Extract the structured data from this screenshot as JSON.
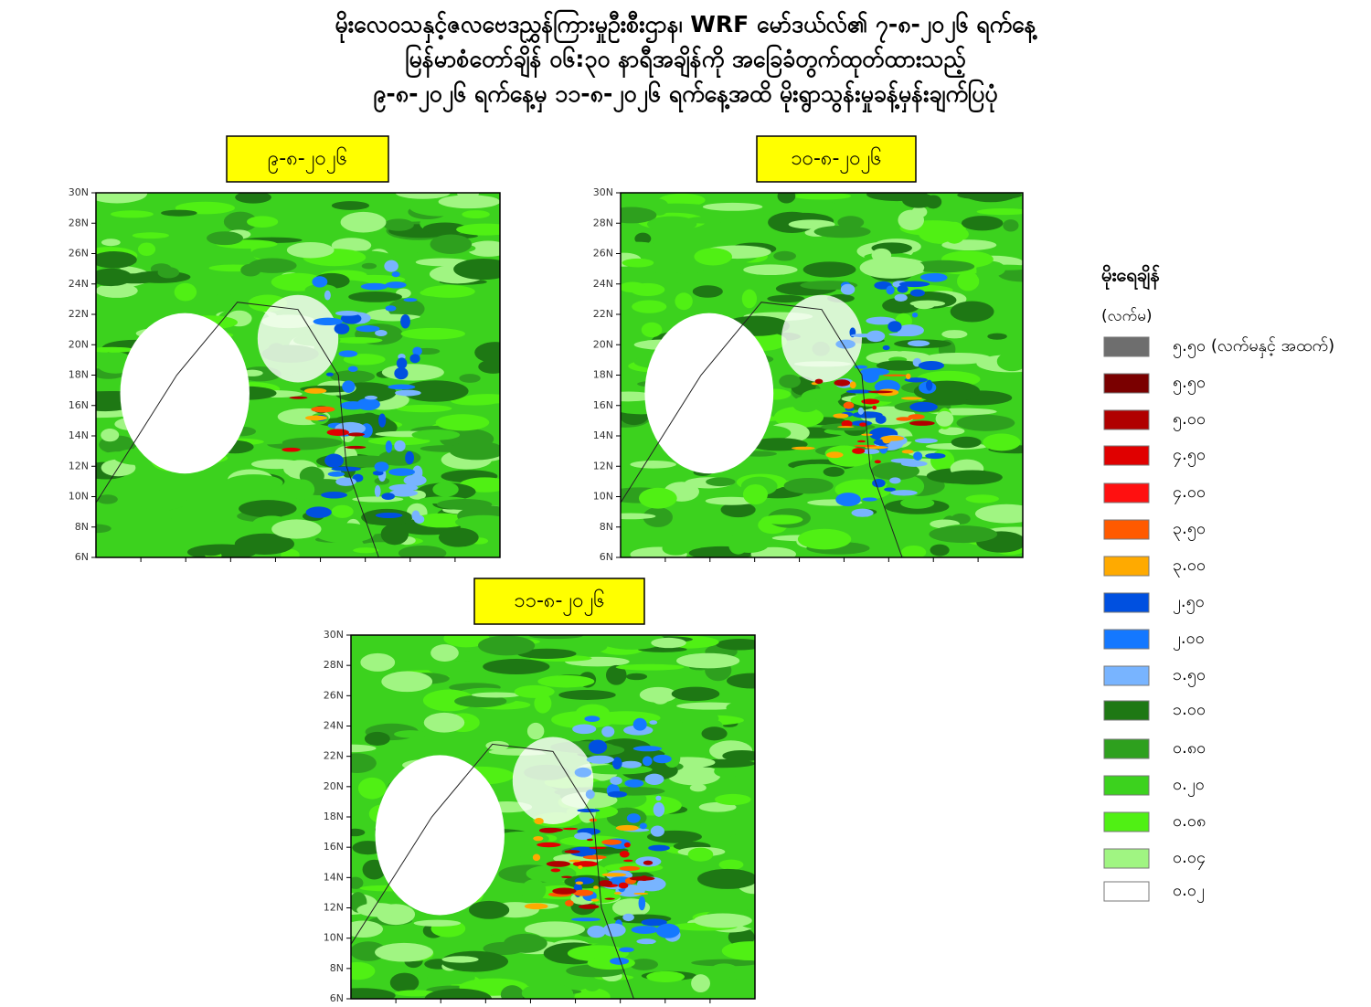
{
  "header": {
    "lines": [
      "မိုးလေဝသနှင့်ဇလဗေဒညွှန်ကြားမှုဦးစီးဌာန၊ WRF မော်ဒယ်လ်၏ ၇-၈-၂၀၂၆ ရက်နေ့",
      "မြန်မာစံတော်ချိန် ၀၆:၃၀ နာရီအချိန်ကို အခြေခံတွက်ထုတ်ထားသည့်",
      "၉-၈-၂၀၂၆ ရက်နေ့မှ ၁၁-၈-၂၀၂၆ ရက်နေ့အထိ မိုးရွာသွန်းမှုခန့်မှန်းချက်ပြပုံ"
    ]
  },
  "maps": [
    {
      "label": "၉-၈-၂၀၂၆"
    },
    {
      "label": "၁၀-၈-၂၀၂၆"
    },
    {
      "label": "၁၁-၈-၂၀၂၆"
    }
  ],
  "lat_labels": [
    "30N",
    "28N",
    "26N",
    "24N",
    "22N",
    "20N",
    "18N",
    "16N",
    "14N",
    "12N",
    "10N",
    "8N",
    "6N"
  ],
  "legend": {
    "title": "မိုးရေချိန်",
    "unit": "(လက်မ)",
    "items": [
      {
        "label": "၅.၅၀ (လက်မနှင့် အထက်)",
        "color": "#6e6e6e"
      },
      {
        "label": "၅.၅၀",
        "color": "#7a0000"
      },
      {
        "label": "၅.၀၀",
        "color": "#b00000"
      },
      {
        "label": "၄.၅၀",
        "color": "#e00000"
      },
      {
        "label": "၄.၀၀",
        "color": "#ff1010"
      },
      {
        "label": "၃.၅၀",
        "color": "#ff5a00"
      },
      {
        "label": "၃.၀၀",
        "color": "#ffaa00"
      },
      {
        "label": "၂.၅၀",
        "color": "#0050e0"
      },
      {
        "label": "၂.၀၀",
        "color": "#1478ff"
      },
      {
        "label": "၁.၅၀",
        "color": "#78b4ff"
      },
      {
        "label": "၁.၀၀",
        "color": "#1e7814"
      },
      {
        "label": "၀.၈၀",
        "color": "#2ea01e"
      },
      {
        "label": "၀.၂၀",
        "color": "#3cd21e"
      },
      {
        "label": "၀.၀၈",
        "color": "#50f014"
      },
      {
        "label": "၀.၀၄",
        "color": "#a0f582"
      },
      {
        "label": "၀.၀၂",
        "color": "#ffffff"
      }
    ]
  }
}
